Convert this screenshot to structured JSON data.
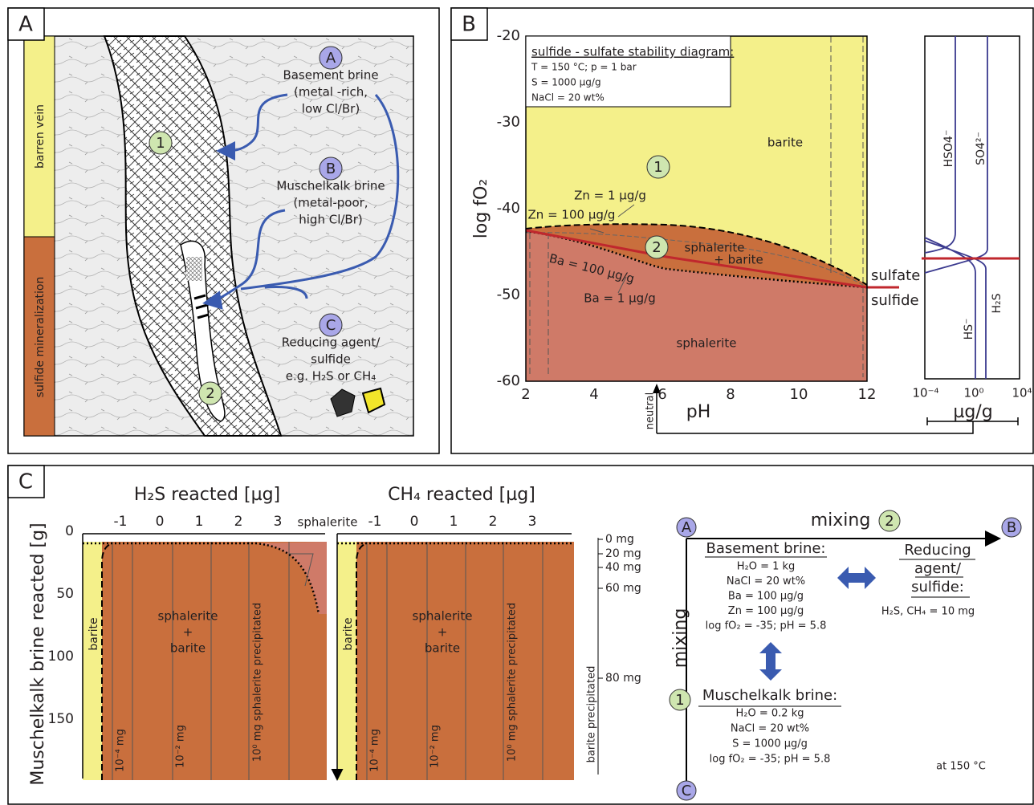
{
  "panel_a": {
    "label": "A",
    "zones": [
      "barren vein",
      "sulfide mineralization"
    ],
    "fluids": [
      {
        "marker": "A",
        "lines": [
          "Basement brine",
          "(metal -rich,",
          "low Cl/Br)"
        ]
      },
      {
        "marker": "B",
        "lines": [
          "Muschelkalk brine",
          "(metal-poor,",
          "high Cl/Br)"
        ]
      },
      {
        "marker": "C",
        "lines": [
          "Reducing agent/",
          "sulfide",
          "e.g. H₂S or CH₄"
        ]
      }
    ],
    "sites": [
      "1",
      "2"
    ]
  },
  "panel_b": {
    "label": "B",
    "y_label": "log fO₂",
    "x_label": "pH",
    "y_ticks": [
      "-20",
      "-30",
      "-40",
      "-50",
      "-60"
    ],
    "x_ticks": [
      "2",
      "4",
      "6",
      "8",
      "10",
      "12"
    ],
    "legend": [
      "sulfide - sulfate stability diagram:",
      "T = 150 °C; p = 1 bar",
      "S = 1000 µg/g",
      "NaCl = 20 wt%"
    ],
    "field_barite": "barite",
    "field_mixed": [
      "sphalerite",
      "+ barite"
    ],
    "field_sphalerite": "sphalerite",
    "contours": [
      "Zn = 1 µg/g",
      "Zn = 100 µg/g",
      "Ba = 100 µg/g",
      "Ba = 1 µg/g"
    ],
    "boundary": [
      "sulfate",
      "sulfide"
    ],
    "neutral": "neutral",
    "sites": [
      "1",
      "2"
    ],
    "species_panel": {
      "x_label": "µg/g",
      "x_ticks": [
        "10⁻⁴",
        "10⁰",
        "10⁴"
      ],
      "species": [
        "HSO4⁻",
        "SO4²⁻",
        "HS⁻",
        "H₂S"
      ]
    }
  },
  "panel_c": {
    "label": "C",
    "y_label": "Muschelkalk brine reacted [g]",
    "y_ticks": [
      "0",
      "50",
      "100",
      "150"
    ],
    "plots": [
      {
        "title": "H₂S reacted [µg]",
        "x_ticks": [
          "-1",
          "0",
          "1",
          "2",
          "3"
        ],
        "fields": [
          "barite",
          "sphalerite",
          "+",
          "barite"
        ],
        "contours": [
          "10⁻⁴ mg",
          "10⁻² mg",
          "10⁰ mg sphalerite precipitated"
        ],
        "annotation": "sphalerite"
      },
      {
        "title": "CH₄ reacted [µg]",
        "x_ticks": [
          "-1",
          "0",
          "1",
          "2",
          "3"
        ],
        "fields": [
          "barite",
          "sphalerite",
          "+",
          "barite"
        ],
        "contours": [
          "10⁻⁴ mg",
          "10⁻² mg",
          "10⁰ mg sphalerite precipitated"
        ]
      }
    ],
    "barite_scale": {
      "ticks": [
        "0 mg",
        "20 mg",
        "40 mg",
        "60 mg",
        "80 mg"
      ],
      "label": "barite precipitated"
    },
    "scheme": {
      "markers": [
        "A",
        "B",
        "C"
      ],
      "mixing_top": "mixing",
      "mixing_top_site": "2",
      "mixing_left": "mixing",
      "mixing_left_site": "1",
      "basement": {
        "title": "Basement brine:",
        "lines": [
          "H₂O = 1 kg",
          "NaCl = 20 wt%",
          "Ba = 100 µg/g",
          "Zn = 100 µg/g",
          "log fO₂ = -35; pH = 5.8"
        ]
      },
      "reducing": {
        "title": [
          "Reducing",
          "agent/",
          "sulfide:"
        ],
        "lines": [
          "H₂S, CH₄ = 10 mg"
        ]
      },
      "muschelkalk": {
        "title": "Muschelkalk brine:",
        "lines": [
          "H₂O = 0.2 kg",
          "NaCl = 20 wt%",
          "S = 1000 µg/g",
          "log fO₂ = -35; pH = 5.8"
        ]
      },
      "temperature": "at 150 °C"
    }
  }
}
